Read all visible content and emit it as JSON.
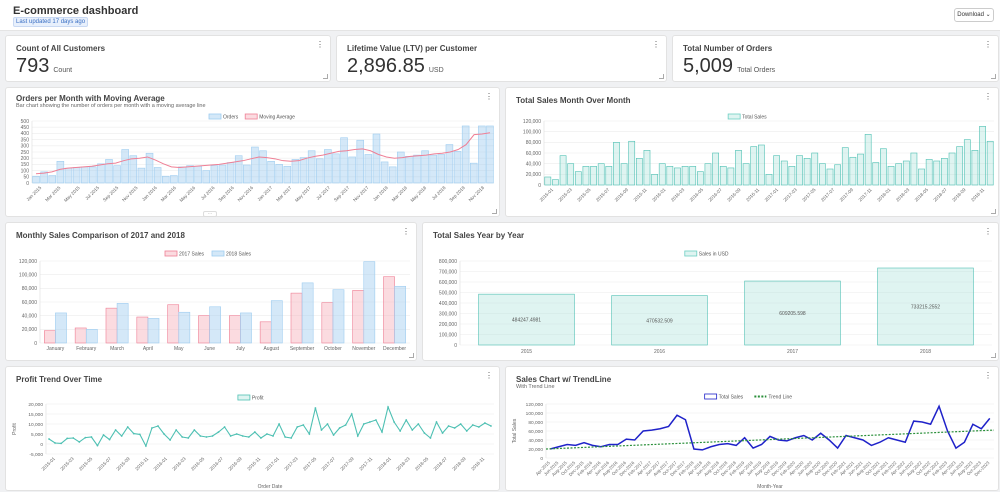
{
  "header": {
    "title": "E-commerce dashboard",
    "updated": "Last updated 17 days ago",
    "download": "Download"
  },
  "colors": {
    "blue": "#9fcdf0",
    "blueFill": "rgba(160,205,240,0.45)",
    "red": "#ef7f95",
    "redFill": "rgba(246,175,187,0.45)",
    "teal": "#6ccfc3",
    "tealFill": "rgba(150,220,210,0.3)",
    "tealLine": "#4ec0b3",
    "navy": "#1f22c9",
    "green": "#2a8f3a"
  },
  "kpis": [
    {
      "title": "Count of All Customers",
      "value": "793",
      "unit": "Count"
    },
    {
      "title": "Lifetime Value (LTV) per Customer",
      "value": "2,896.85",
      "unit": "USD"
    },
    {
      "title": "Total Number of Orders",
      "value": "5,009",
      "unit": "Total Orders"
    }
  ],
  "chart_data": [
    {
      "id": "orders",
      "type": "bar",
      "title": "Orders per Month with Moving Average",
      "subtitle": "Bar chart showing the number of orders per month with a moving average line",
      "legend": [
        "Orders",
        "Moving Average"
      ],
      "ylim": [
        0,
        500
      ],
      "yticks": [
        "0",
        "50",
        "100",
        "150",
        "200",
        "250",
        "300",
        "350",
        "400",
        "450",
        "500"
      ],
      "xlabels": [
        "Jan 2015",
        "Mar 2015",
        "May 2015",
        "Jul 2015",
        "Sep 2015",
        "Nov 2015",
        "Jan 2016",
        "Mar 2016",
        "May 2016",
        "Jul 2016",
        "Sep 2016",
        "Nov 2016",
        "Jan 2017",
        "Mar 2017",
        "May 2017",
        "Jul 2017",
        "Sep 2017",
        "Nov 2017",
        "Jan 2018",
        "Mar 2018",
        "May 2018",
        "Jul 2018",
        "Sep 2018",
        "Nov 2018"
      ],
      "values": [
        55,
        90,
        60,
        175,
        120,
        125,
        130,
        130,
        155,
        190,
        140,
        270,
        220,
        120,
        240,
        125,
        55,
        60,
        130,
        140,
        135,
        100,
        140,
        145,
        165,
        220,
        145,
        290,
        260,
        175,
        150,
        135,
        190,
        205,
        260,
        195,
        270,
        235,
        365,
        210,
        345,
        230,
        395,
        170,
        130,
        250,
        215,
        225,
        260,
        225,
        230,
        310,
        255,
        460,
        160,
        460,
        460
      ],
      "moving_average": [
        75,
        80,
        90,
        110,
        120,
        125,
        130,
        135,
        145,
        155,
        160,
        180,
        195,
        200,
        210,
        185,
        155,
        130,
        125,
        130,
        135,
        140,
        145,
        150,
        160,
        170,
        180,
        195,
        210,
        205,
        195,
        180,
        175,
        180,
        200,
        215,
        225,
        240,
        255,
        260,
        270,
        275,
        260,
        230,
        210,
        200,
        205,
        215,
        220,
        225,
        235,
        240,
        250,
        270,
        310,
        390,
        395,
        405
      ],
      "moving_average_label": "Moving Average"
    },
    {
      "id": "sales",
      "type": "bar",
      "title": "Total Sales Month Over Month",
      "legend": [
        "Total Sales"
      ],
      "ylim": [
        0,
        120000
      ],
      "yticks": [
        "0",
        "20,000",
        "40,000",
        "60,000",
        "80,000",
        "100,000",
        "120,000"
      ],
      "xlabels": [
        "2015-01",
        "2015-03",
        "2015-05",
        "2015-07",
        "2015-09",
        "2015-11",
        "2016-01",
        "2016-03",
        "2016-05",
        "2016-07",
        "2016-09",
        "2016-11",
        "2017-01",
        "2017-03",
        "2017-05",
        "2017-07",
        "2017-09",
        "2017-11",
        "2018-01",
        "2018-03",
        "2018-05",
        "2018-07",
        "2018-09",
        "2018-11"
      ],
      "values": [
        15000,
        10000,
        55000,
        40000,
        25000,
        35000,
        35000,
        40000,
        35000,
        80000,
        40000,
        82000,
        50000,
        65000,
        20000,
        40000,
        35000,
        32000,
        35000,
        35000,
        25000,
        40000,
        60000,
        35000,
        32000,
        65000,
        40000,
        72000,
        75000,
        20000,
        55000,
        45000,
        35000,
        55000,
        50000,
        60000,
        40000,
        30000,
        38000,
        70000,
        52000,
        58000,
        95000,
        42000,
        68000,
        35000,
        40000,
        45000,
        60000,
        30000,
        48000,
        45000,
        50000,
        60000,
        72000,
        85000,
        65000,
        110000,
        82000
      ]
    },
    {
      "id": "monthly",
      "type": "bar",
      "title": "Monthly Sales Comparison of 2017 and 2018",
      "legend": [
        "2017 Sales",
        "2018 Sales"
      ],
      "ylim": [
        0,
        120000
      ],
      "yticks": [
        "0",
        "20,000",
        "40,000",
        "60,000",
        "80,000",
        "100,000",
        "120,000"
      ],
      "categories": [
        "January",
        "February",
        "March",
        "April",
        "May",
        "June",
        "July",
        "August",
        "September",
        "October",
        "November",
        "December"
      ],
      "series": [
        {
          "name": "2017 Sales",
          "values": [
            18000,
            22000,
            51000,
            38000,
            56000,
            40000,
            40000,
            31000,
            73000,
            59000,
            77000,
            97000
          ]
        },
        {
          "name": "2018 Sales",
          "values": [
            44000,
            20000,
            58000,
            36000,
            45000,
            53000,
            44000,
            62000,
            88000,
            78000,
            119000,
            83000
          ]
        }
      ]
    },
    {
      "id": "yearly",
      "type": "bar",
      "title": "Total Sales Year by Year",
      "legend": [
        "Sales in USD"
      ],
      "ylim": [
        0,
        800000
      ],
      "yticks": [
        "0",
        "100,000",
        "200,000",
        "300,000",
        "400,000",
        "500,000",
        "600,000",
        "700,000",
        "800,000"
      ],
      "categories": [
        "2015",
        "2016",
        "2017",
        "2018"
      ],
      "values": [
        484247.4981,
        470532.509,
        609205.598,
        733215.2552
      ],
      "labels": [
        "484247.4981",
        "470532.509",
        "609205.598",
        "733215.2552"
      ]
    },
    {
      "id": "profit",
      "type": "line",
      "title": "Profit Trend Over Time",
      "legend": [
        "Profit"
      ],
      "ylim": [
        -5000,
        20000
      ],
      "yticks": [
        "-5,000",
        "0",
        "5,000",
        "10,000",
        "15,000",
        "20,000"
      ],
      "ylabel": "Profit",
      "xlabel": "Order Date",
      "xlabels": [
        "2015-01",
        "2015-03",
        "2015-05",
        "2015-07",
        "2015-09",
        "2015-11",
        "2016-01",
        "2016-03",
        "2016-05",
        "2016-07",
        "2016-09",
        "2016-11",
        "2017-01",
        "2017-03",
        "2017-05",
        "2017-07",
        "2017-09",
        "2017-11",
        "2018-01",
        "2018-03",
        "2018-05",
        "2018-07",
        "2018-09",
        "2018-11"
      ],
      "values": [
        2500,
        500,
        300,
        2800,
        3000,
        1000,
        3200,
        3500,
        -800,
        4500,
        2200,
        7000,
        4000,
        8500,
        5200,
        4800,
        -1000,
        8000,
        9000,
        5000,
        2000,
        7000,
        3500,
        3000,
        7000,
        4000,
        3500,
        4000,
        6000,
        8500,
        4000,
        5000,
        4000,
        3500,
        6000,
        3000,
        5000,
        4000,
        10000,
        3500,
        3000,
        8500,
        9500,
        5000,
        18000,
        7000,
        10000,
        4500,
        8000,
        9500,
        15000,
        4000,
        10000,
        11000,
        12000,
        6000,
        18500,
        11000,
        6500,
        12000,
        7000,
        10000,
        5500,
        3000,
        11000,
        5500,
        9000,
        8000,
        10000,
        6500,
        9500,
        8500,
        10500,
        9000
      ]
    },
    {
      "id": "trend",
      "type": "line",
      "title": "Sales Chart w/ TrendLine",
      "subtitle": "With Trend Line",
      "legend": [
        "Total Sales",
        "Trend Line"
      ],
      "ylim": [
        0,
        120000
      ],
      "yticks": [
        "0",
        "20,000",
        "40,000",
        "60,000",
        "80,000",
        "100,000",
        "120,000"
      ],
      "ylabel": "Total Sales",
      "xlabel": "Month-Year",
      "xlabels": [
        "Apr-2015",
        "Jun-2015",
        "Aug-2015",
        "Oct-2015",
        "Dec-2015",
        "Feb-2016",
        "Apr-2016",
        "Jun-2016",
        "Aug-2016",
        "Oct-2016",
        "Dec-2016",
        "Feb-2017",
        "Apr-2017",
        "Jun-2017",
        "Aug-2017",
        "Oct-2017",
        "Dec-2017",
        "Feb-2018",
        "Apr-2018",
        "Jun-2018",
        "Aug-2018",
        "Oct-2018",
        "Dec-2018",
        "Feb-2019",
        "Apr-2019",
        "Jun-2019",
        "Aug-2019",
        "Oct-2019",
        "Dec-2019",
        "Feb-2020",
        "Apr-2020",
        "Jun-2020",
        "Aug-2020",
        "Oct-2020",
        "Dec-2020",
        "Feb-2021",
        "Apr-2021",
        "Jun-2021",
        "Aug-2021",
        "Oct-2021",
        "Dec-2021",
        "Feb-2022",
        "Apr-2022",
        "Jun-2022",
        "Aug-2022",
        "Oct-2022",
        "Dec-2022",
        "Feb-2023",
        "Apr-2023",
        "Jun-2023",
        "Aug-2023",
        "Oct-2023",
        "Dec-2023"
      ],
      "values": [
        20000,
        25000,
        30000,
        28000,
        34000,
        28000,
        25000,
        30000,
        30000,
        42000,
        40000,
        60000,
        62000,
        65000,
        70000,
        95000,
        85000,
        20000,
        18000,
        25000,
        30000,
        32000,
        28000,
        45000,
        22000,
        30000,
        48000,
        40000,
        38000,
        45000,
        50000,
        40000,
        55000,
        40000,
        22000,
        50000,
        45000,
        40000,
        28000,
        35000,
        45000,
        40000,
        35000,
        82000,
        80000,
        75000,
        115000,
        60000,
        22000,
        35000,
        75000,
        65000,
        88000
      ],
      "trend": [
        20000,
        62000
      ]
    }
  ]
}
